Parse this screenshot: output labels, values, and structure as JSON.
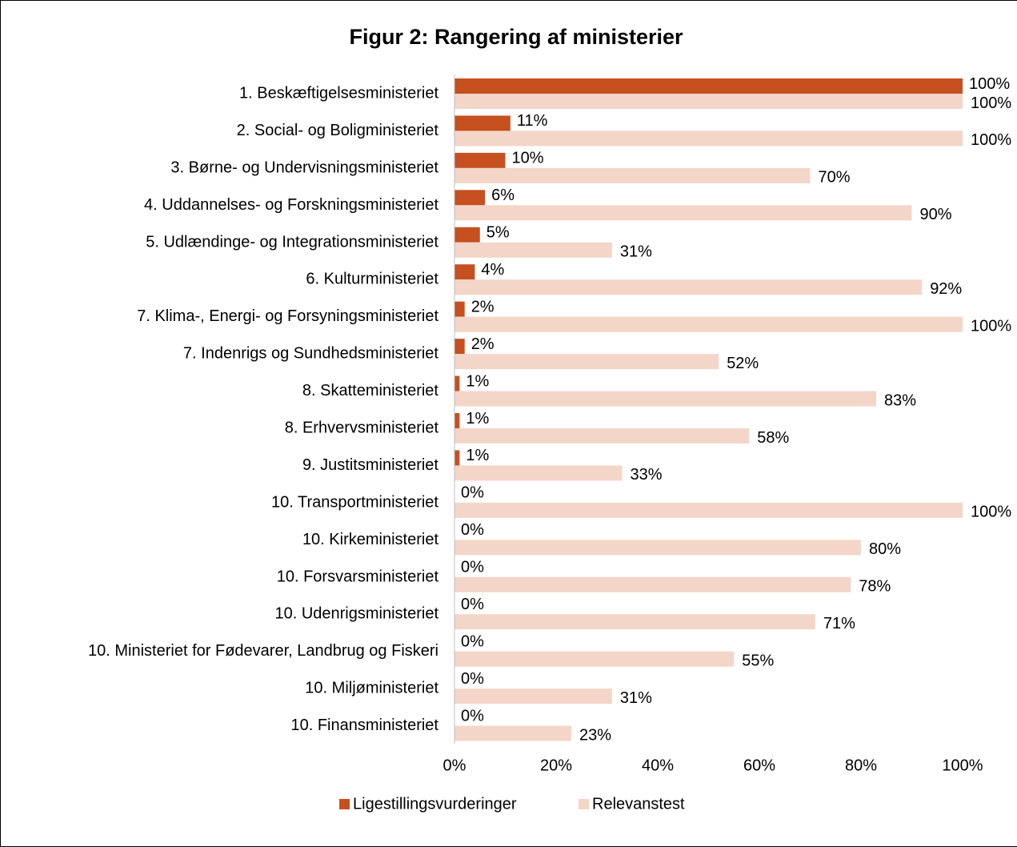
{
  "chart_data": {
    "type": "bar",
    "orientation": "horizontal",
    "title": "Figur 2: Rangering af ministerier",
    "categories": [
      "1. Beskæftigelsesministeriet",
      "2. Social- og Boligministeriet",
      "3. Børne- og Undervisningsministeriet",
      "4. Uddannelses- og Forskningsministeriet",
      "5. Udlændinge- og Integrationsministeriet",
      "6. Kulturministeriet",
      "7. Klima-, Energi- og Forsyningsministeriet",
      "7. Indenrigs og Sundhedsministeriet",
      "8. Skatteministeriet",
      "8. Erhvervsministeriet",
      "9. Justitsministeriet",
      "10. Transportministeriet",
      "10. Kirkeministeriet",
      "10. Forsvarsministeriet",
      "10. Udenrigsministeriet",
      "10. Ministeriet for Fødevarer, Landbrug og Fiskeri",
      "10. Miljøministeriet",
      "10. Finansministeriet"
    ],
    "series": [
      {
        "name": "Ligestillingsvurderinger",
        "color": "#c65020",
        "values": [
          100,
          11,
          10,
          6,
          5,
          4,
          2,
          2,
          1,
          1,
          1,
          0,
          0,
          0,
          0,
          0,
          0,
          0
        ],
        "value_labels": [
          "100%",
          "11%",
          "10%",
          "6%",
          "5%",
          "4%",
          "2%",
          "2%",
          "1%",
          "1%",
          "1%",
          "0%",
          "0%",
          "0%",
          "0%",
          "0%",
          "0%",
          "0%"
        ]
      },
      {
        "name": "Relevanstest",
        "color": "#f3d6c8",
        "values": [
          100,
          100,
          70,
          90,
          31,
          92,
          100,
          52,
          83,
          58,
          33,
          100,
          80,
          78,
          71,
          55,
          31,
          23
        ],
        "value_labels": [
          "100%",
          "100%",
          "70%",
          "90%",
          "31%",
          "92%",
          "100%",
          "52%",
          "83%",
          "58%",
          "33%",
          "100%",
          "80%",
          "78%",
          "71%",
          "55%",
          "31%",
          "23%"
        ]
      }
    ],
    "xlim": [
      0,
      100
    ],
    "xticks": [
      {
        "value": 0,
        "label": "0%"
      },
      {
        "value": 20,
        "label": "20%"
      },
      {
        "value": 40,
        "label": "40%"
      },
      {
        "value": 60,
        "label": "60%"
      },
      {
        "value": 80,
        "label": "80%"
      },
      {
        "value": 100,
        "label": "100%"
      }
    ],
    "legend": "bottom"
  }
}
